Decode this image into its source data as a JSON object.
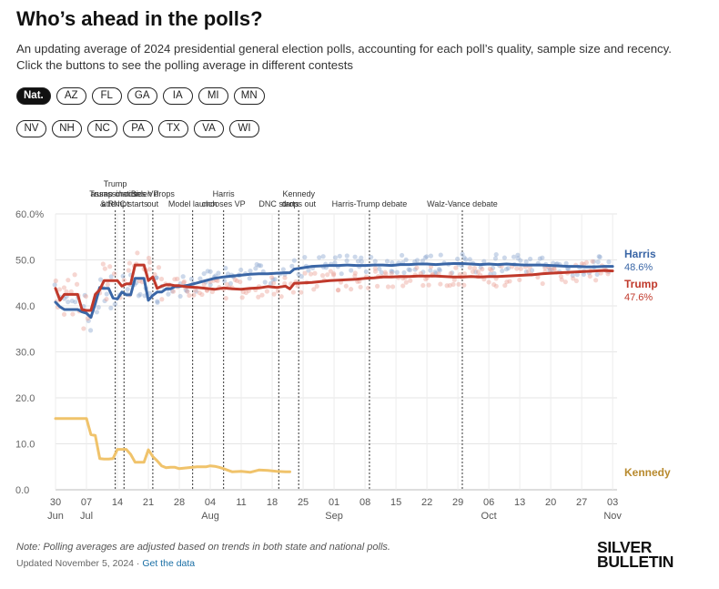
{
  "header": {
    "title": "Who’s ahead in the polls?",
    "subtitle": "An updating average of 2024 presidential general election polls, accounting for each poll’s quality, sample size and recency. Click the buttons to see the polling average in different contests"
  },
  "contests": {
    "row1": [
      "Nat.",
      "AZ",
      "FL",
      "GA",
      "IA",
      "MI",
      "MN"
    ],
    "row2": [
      "NV",
      "NH",
      "NC",
      "PA",
      "TX",
      "VA",
      "WI"
    ],
    "selected": "Nat."
  },
  "chart_data": {
    "type": "line",
    "title": "Who’s ahead in the polls?",
    "xlabel": "",
    "ylabel": "",
    "ylim": [
      0,
      60
    ],
    "y_ticks": [
      "0.0",
      "10.0",
      "20.0",
      "30.0",
      "40.0",
      "50.0",
      "60.0%"
    ],
    "x_range_days": [
      0,
      127
    ],
    "x_ticks": [
      {
        "day": 0,
        "label": "30",
        "month": "Jun"
      },
      {
        "day": 7,
        "label": "07",
        "month": "Jul"
      },
      {
        "day": 14,
        "label": "14"
      },
      {
        "day": 21,
        "label": "21"
      },
      {
        "day": 28,
        "label": "28"
      },
      {
        "day": 35,
        "label": "04",
        "month": "Aug"
      },
      {
        "day": 42,
        "label": "11"
      },
      {
        "day": 49,
        "label": "18"
      },
      {
        "day": 56,
        "label": "25"
      },
      {
        "day": 63,
        "label": "01",
        "month": "Sep"
      },
      {
        "day": 70,
        "label": "08"
      },
      {
        "day": 77,
        "label": "15"
      },
      {
        "day": 84,
        "label": "22"
      },
      {
        "day": 91,
        "label": "29"
      },
      {
        "day": 98,
        "label": "06",
        "month": "Oct"
      },
      {
        "day": 105,
        "label": "13"
      },
      {
        "day": 112,
        "label": "20"
      },
      {
        "day": 119,
        "label": "27"
      },
      {
        "day": 126,
        "label": "03",
        "month": "Nov"
      }
    ],
    "series": [
      {
        "name": "Harris",
        "label": "Harris",
        "value_label": "48.6%",
        "color": "#3a66a6",
        "dot_color": "#8fa9d1",
        "points": [
          [
            0,
            40.8
          ],
          [
            1,
            39.8
          ],
          [
            2,
            39.2
          ],
          [
            3,
            39.2
          ],
          [
            4,
            39.2
          ],
          [
            5,
            39.2
          ],
          [
            6,
            38.7
          ],
          [
            7,
            38.4
          ],
          [
            8,
            37.5
          ],
          [
            9,
            40.5
          ],
          [
            10,
            44
          ],
          [
            11,
            43.8
          ],
          [
            12,
            43.8
          ],
          [
            13,
            41.7
          ],
          [
            14,
            41.5
          ],
          [
            15,
            43
          ],
          [
            16,
            42.4
          ],
          [
            17,
            42.4
          ],
          [
            18,
            46
          ],
          [
            19,
            46
          ],
          [
            20,
            46
          ],
          [
            21,
            41.2
          ],
          [
            22,
            42.3
          ],
          [
            23,
            43
          ],
          [
            24,
            43
          ],
          [
            25,
            43.7
          ],
          [
            26,
            43.7
          ],
          [
            27,
            44.2
          ],
          [
            28,
            44.2
          ],
          [
            30,
            44.5
          ],
          [
            32,
            45
          ],
          [
            34,
            45.5
          ],
          [
            36,
            46
          ],
          [
            38,
            46.3
          ],
          [
            40,
            46.5
          ],
          [
            42,
            46.7
          ],
          [
            44,
            46.9
          ],
          [
            46,
            47
          ],
          [
            48,
            47
          ],
          [
            50,
            47.1
          ],
          [
            52,
            47.2
          ],
          [
            53,
            47.2
          ],
          [
            54,
            48
          ],
          [
            56,
            48.3
          ],
          [
            58,
            48.6
          ],
          [
            60,
            48.7
          ],
          [
            62,
            48.8
          ],
          [
            64,
            48.8
          ],
          [
            66,
            48.9
          ],
          [
            68,
            48.8
          ],
          [
            70,
            48.8
          ],
          [
            72,
            48.9
          ],
          [
            74,
            48.9
          ],
          [
            76,
            48.8
          ],
          [
            78,
            49
          ],
          [
            80,
            49
          ],
          [
            82,
            49.1
          ],
          [
            84,
            49.1
          ],
          [
            86,
            49
          ],
          [
            88,
            49.1
          ],
          [
            90,
            49.2
          ],
          [
            92,
            49.2
          ],
          [
            94,
            49.1
          ],
          [
            96,
            49
          ],
          [
            98,
            49.1
          ],
          [
            100,
            49
          ],
          [
            102,
            49.1
          ],
          [
            104,
            49
          ],
          [
            106,
            48.9
          ],
          [
            108,
            48.9
          ],
          [
            110,
            48.9
          ],
          [
            112,
            48.8
          ],
          [
            114,
            48.7
          ],
          [
            116,
            48.6
          ],
          [
            118,
            48.6
          ],
          [
            120,
            48.5
          ],
          [
            122,
            48.5
          ],
          [
            124,
            48.6
          ],
          [
            126,
            48.6
          ]
        ]
      },
      {
        "name": "Trump",
        "label": "Trump",
        "value_label": "47.6%",
        "color": "#c0392b",
        "dot_color": "#eaa49a",
        "points": [
          [
            0,
            43.8
          ],
          [
            1,
            41.2
          ],
          [
            2,
            42.5
          ],
          [
            3,
            42.5
          ],
          [
            4,
            42.5
          ],
          [
            5,
            42.5
          ],
          [
            6,
            39.2
          ],
          [
            7,
            39
          ],
          [
            8,
            39
          ],
          [
            9,
            42.5
          ],
          [
            10,
            43.5
          ],
          [
            11,
            45.5
          ],
          [
            12,
            45.5
          ],
          [
            13,
            45.5
          ],
          [
            14,
            45.5
          ],
          [
            15,
            44.3
          ],
          [
            16,
            44.8
          ],
          [
            17,
            44.8
          ],
          [
            18,
            48.9
          ],
          [
            19,
            48.9
          ],
          [
            20,
            48.9
          ],
          [
            21,
            45.5
          ],
          [
            22,
            46.3
          ],
          [
            23,
            43.8
          ],
          [
            24,
            44.3
          ],
          [
            25,
            44.6
          ],
          [
            26,
            44.6
          ],
          [
            27,
            44.4
          ],
          [
            28,
            44.4
          ],
          [
            30,
            44.1
          ],
          [
            32,
            44
          ],
          [
            34,
            43.8
          ],
          [
            36,
            43.6
          ],
          [
            38,
            43.9
          ],
          [
            40,
            43.7
          ],
          [
            42,
            43.6
          ],
          [
            44,
            43.8
          ],
          [
            46,
            43.9
          ],
          [
            48,
            44.2
          ],
          [
            50,
            44
          ],
          [
            52,
            44.3
          ],
          [
            53,
            43.7
          ],
          [
            54,
            44.9
          ],
          [
            56,
            45
          ],
          [
            58,
            45.1
          ],
          [
            60,
            45.3
          ],
          [
            62,
            45.5
          ],
          [
            64,
            45.6
          ],
          [
            66,
            45.7
          ],
          [
            68,
            45.8
          ],
          [
            70,
            46
          ],
          [
            72,
            46.1
          ],
          [
            74,
            46.3
          ],
          [
            76,
            46.3
          ],
          [
            78,
            46.4
          ],
          [
            80,
            46.4
          ],
          [
            82,
            46.5
          ],
          [
            84,
            46.5
          ],
          [
            86,
            46.5
          ],
          [
            88,
            46.4
          ],
          [
            90,
            46.3
          ],
          [
            92,
            46.3
          ],
          [
            94,
            46.4
          ],
          [
            96,
            46.3
          ],
          [
            98,
            46.4
          ],
          [
            100,
            46.4
          ],
          [
            102,
            46.5
          ],
          [
            104,
            46.6
          ],
          [
            106,
            46.7
          ],
          [
            108,
            46.8
          ],
          [
            110,
            47
          ],
          [
            112,
            47.1
          ],
          [
            114,
            47.2
          ],
          [
            116,
            47.3
          ],
          [
            118,
            47.4
          ],
          [
            120,
            47.5
          ],
          [
            122,
            47.6
          ],
          [
            124,
            47.7
          ],
          [
            126,
            47.6
          ]
        ]
      },
      {
        "name": "Kennedy",
        "label": "Kennedy",
        "value_label": "",
        "color": "#f0c36b",
        "dot_color": "#f0c36b",
        "points": [
          [
            0,
            15.5
          ],
          [
            1,
            15.5
          ],
          [
            2,
            15.5
          ],
          [
            3,
            15.5
          ],
          [
            4,
            15.5
          ],
          [
            5,
            15.5
          ],
          [
            6,
            15.5
          ],
          [
            7,
            15.5
          ],
          [
            8,
            12
          ],
          [
            9,
            11.8
          ],
          [
            10,
            6.8
          ],
          [
            11,
            6.7
          ],
          [
            12,
            6.7
          ],
          [
            13,
            6.8
          ],
          [
            14,
            8.8
          ],
          [
            15,
            8.8
          ],
          [
            16,
            8.8
          ],
          [
            17,
            7.7
          ],
          [
            18,
            6
          ],
          [
            19,
            6
          ],
          [
            20,
            6
          ],
          [
            21,
            8.7
          ],
          [
            22,
            7.2
          ],
          [
            23,
            6.3
          ],
          [
            24,
            5.2
          ],
          [
            25,
            4.8
          ],
          [
            26,
            4.9
          ],
          [
            27,
            4.9
          ],
          [
            28,
            4.6
          ],
          [
            30,
            4.8
          ],
          [
            32,
            5
          ],
          [
            34,
            5
          ],
          [
            35,
            5.2
          ],
          [
            36,
            5.1
          ],
          [
            37,
            4.9
          ],
          [
            38,
            4.6
          ],
          [
            40,
            3.9
          ],
          [
            42,
            4
          ],
          [
            44,
            3.8
          ],
          [
            46,
            4.3
          ],
          [
            48,
            4.2
          ],
          [
            50,
            4
          ],
          [
            52,
            3.9
          ],
          [
            53,
            3.9
          ]
        ]
      }
    ],
    "events": [
      {
        "day": 13.5,
        "lines": [
          "Trump",
          "assassination",
          "attempt"
        ]
      },
      {
        "day": 15.5,
        "lines": [
          "Trump chooses VP",
          "& RNC starts"
        ]
      },
      {
        "day": 22,
        "lines": [
          "Biden drops",
          "out"
        ]
      },
      {
        "day": 31,
        "lines": [
          "Model launch"
        ]
      },
      {
        "day": 38,
        "lines": [
          "Harris",
          "chooses VP"
        ]
      },
      {
        "day": 50.5,
        "lines": [
          "DNC starts"
        ]
      },
      {
        "day": 55,
        "lines": [
          "Kennedy",
          "drops out"
        ]
      },
      {
        "day": 71,
        "lines": [
          "Harris-Trump debate"
        ]
      },
      {
        "day": 92,
        "lines": [
          "Walz-Vance debate"
        ]
      }
    ]
  },
  "footer": {
    "note": "Note: Polling averages are adjusted based on trends in both state and national polls.",
    "updated": "Updated November 5, 2024 ·",
    "link": "Get the data",
    "logo_line1": "SILVER",
    "logo_line2": "BULLETIN"
  }
}
